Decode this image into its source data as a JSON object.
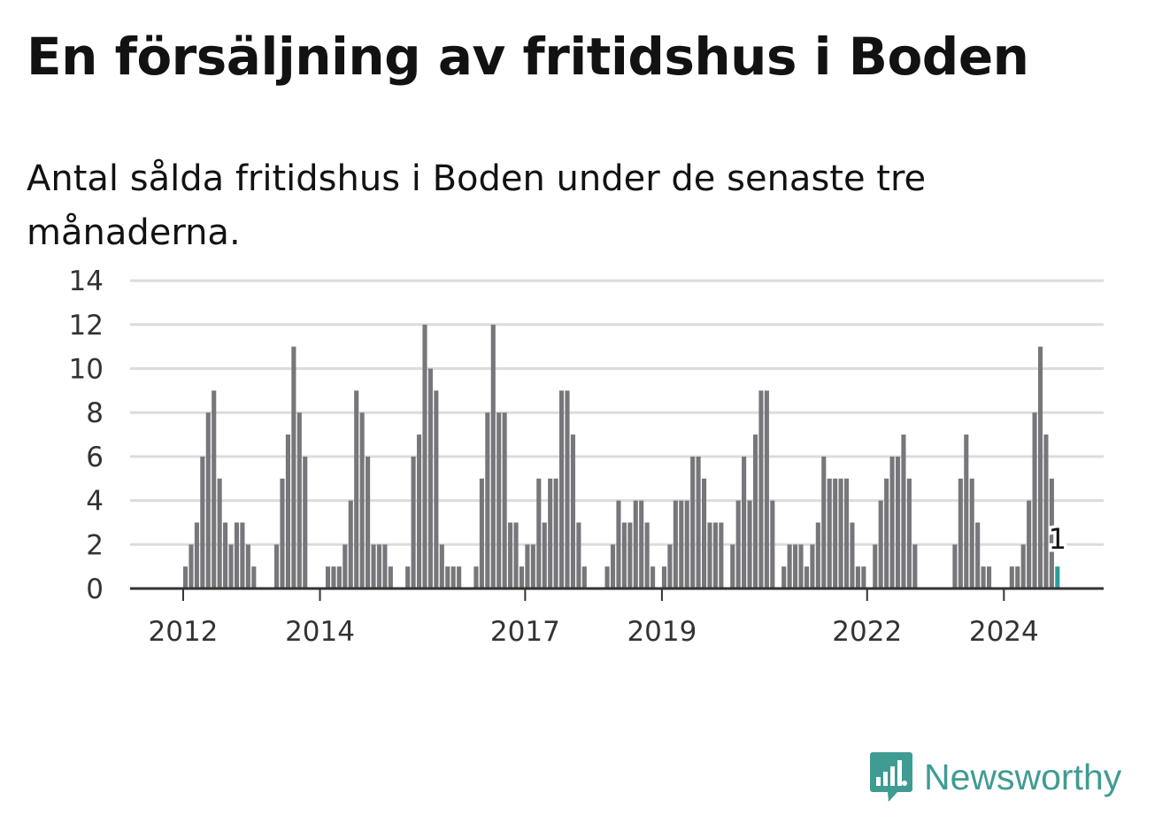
{
  "title": "En försäljning av fritidshus i Boden",
  "subtitle": "Antal sålda fritidshus i Boden under de senaste tre månaderna.",
  "brand": {
    "name": "Newsworthy",
    "icon": "bar-chart-speech-icon",
    "color": "#3f9c93"
  },
  "chart_data": {
    "type": "bar",
    "title": "En försäljning av fritidshus i Boden",
    "subtitle": "Antal sålda fritidshus i Boden under de senaste tre månaderna.",
    "xlabel": "",
    "ylabel": "",
    "ylim": [
      0,
      14
    ],
    "y_ticks": [
      0,
      2,
      4,
      6,
      8,
      10,
      12,
      14
    ],
    "x_ticks": [
      "2012",
      "2014",
      "2017",
      "2019",
      "2022",
      "2024"
    ],
    "grid": true,
    "bar_color": "#77767b",
    "highlight_color": "#2a9d98",
    "start": "2011-04",
    "values": [
      0,
      0,
      0,
      0,
      0,
      0,
      0,
      0,
      0,
      1,
      2,
      3,
      6,
      8,
      9,
      5,
      3,
      2,
      3,
      3,
      2,
      1,
      0,
      0,
      0,
      2,
      5,
      7,
      11,
      8,
      6,
      0,
      0,
      0,
      1,
      1,
      1,
      2,
      4,
      9,
      8,
      6,
      2,
      2,
      2,
      1,
      0,
      0,
      1,
      6,
      7,
      12,
      10,
      9,
      2,
      1,
      1,
      1,
      0,
      0,
      1,
      5,
      8,
      12,
      8,
      8,
      3,
      3,
      1,
      2,
      2,
      5,
      3,
      5,
      5,
      9,
      9,
      7,
      3,
      1,
      0,
      0,
      0,
      1,
      2,
      4,
      3,
      3,
      4,
      4,
      3,
      1,
      0,
      1,
      2,
      4,
      4,
      4,
      6,
      6,
      5,
      3,
      3,
      3,
      0,
      2,
      4,
      6,
      4,
      7,
      9,
      9,
      4,
      0,
      1,
      2,
      2,
      2,
      1,
      2,
      3,
      6,
      5,
      5,
      5,
      5,
      3,
      1,
      1,
      0,
      2,
      4,
      5,
      6,
      6,
      7,
      5,
      2,
      0,
      0,
      0,
      0,
      0,
      0,
      2,
      5,
      7,
      5,
      3,
      1,
      1,
      0,
      0,
      0,
      1,
      1,
      2,
      4,
      8,
      11,
      7,
      5,
      1
    ],
    "last_value_label": "1"
  }
}
